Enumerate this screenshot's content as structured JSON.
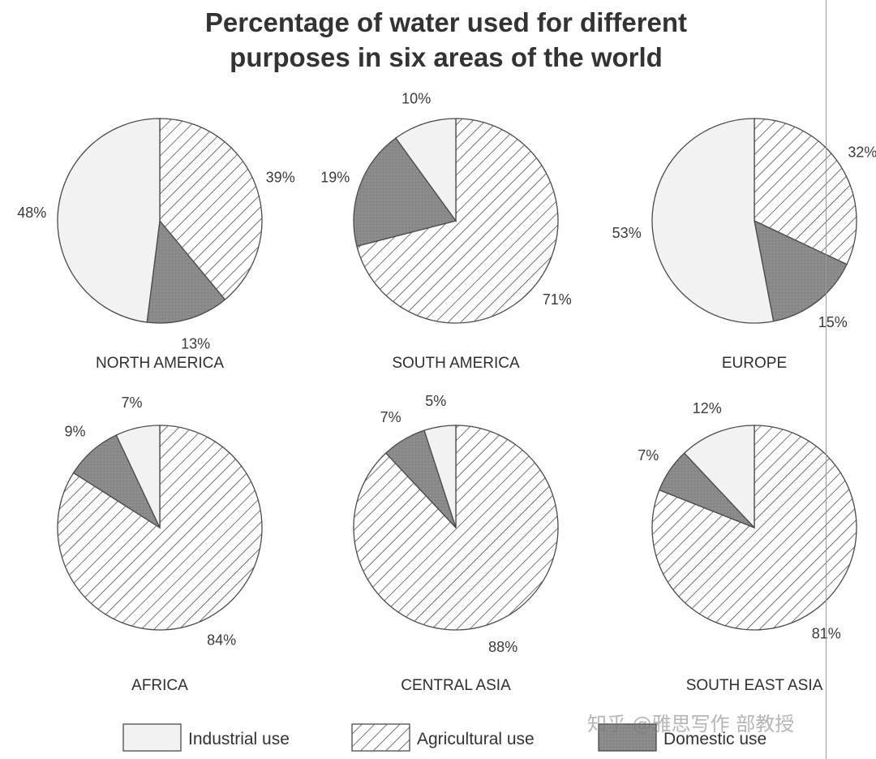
{
  "chart_data": {
    "type": "pie",
    "title": [
      "Percentage of water used for different",
      "purposes in six areas of the world"
    ],
    "colors": {
      "industrial": "#f2f2f2",
      "agricultural": "#ffffff",
      "domestic": "#8a8a8a",
      "hatch": "#3a3a3a",
      "outline": "#4a4a4a"
    },
    "legend": [
      {
        "key": "industrial",
        "label": "Industrial use"
      },
      {
        "key": "agricultural",
        "label": "Agricultural use"
      },
      {
        "key": "domestic",
        "label": "Domestic use"
      }
    ],
    "charts": [
      {
        "region": "NORTH AMERICA",
        "slices": [
          {
            "key": "agricultural",
            "value": 39,
            "label": "39%"
          },
          {
            "key": "domestic",
            "value": 13,
            "label": "13%"
          },
          {
            "key": "industrial",
            "value": 48,
            "label": "48%"
          }
        ]
      },
      {
        "region": "SOUTH AMERICA",
        "slices": [
          {
            "key": "agricultural",
            "value": 71,
            "label": "71%"
          },
          {
            "key": "domestic",
            "value": 19,
            "label": "19%"
          },
          {
            "key": "industrial",
            "value": 10,
            "label": "10%"
          }
        ]
      },
      {
        "region": "EUROPE",
        "slices": [
          {
            "key": "agricultural",
            "value": 32,
            "label": "32%"
          },
          {
            "key": "domestic",
            "value": 15,
            "label": "15%"
          },
          {
            "key": "industrial",
            "value": 53,
            "label": "53%"
          }
        ]
      },
      {
        "region": "AFRICA",
        "slices": [
          {
            "key": "agricultural",
            "value": 84,
            "label": "84%"
          },
          {
            "key": "domestic",
            "value": 9,
            "label": "9%"
          },
          {
            "key": "industrial",
            "value": 7,
            "label": "7%"
          }
        ]
      },
      {
        "region": "CENTRAL ASIA",
        "slices": [
          {
            "key": "agricultural",
            "value": 88,
            "label": "88%"
          },
          {
            "key": "domestic",
            "value": 7,
            "label": "7%"
          },
          {
            "key": "industrial",
            "value": 5,
            "label": "5%"
          }
        ]
      },
      {
        "region": "SOUTH EAST ASIA",
        "slices": [
          {
            "key": "agricultural",
            "value": 81,
            "label": "81%"
          },
          {
            "key": "domestic",
            "value": 7,
            "label": "7%"
          },
          {
            "key": "industrial",
            "value": 12,
            "label": "12%"
          }
        ]
      }
    ]
  },
  "watermark": "知乎 @雅思写作 部教授"
}
